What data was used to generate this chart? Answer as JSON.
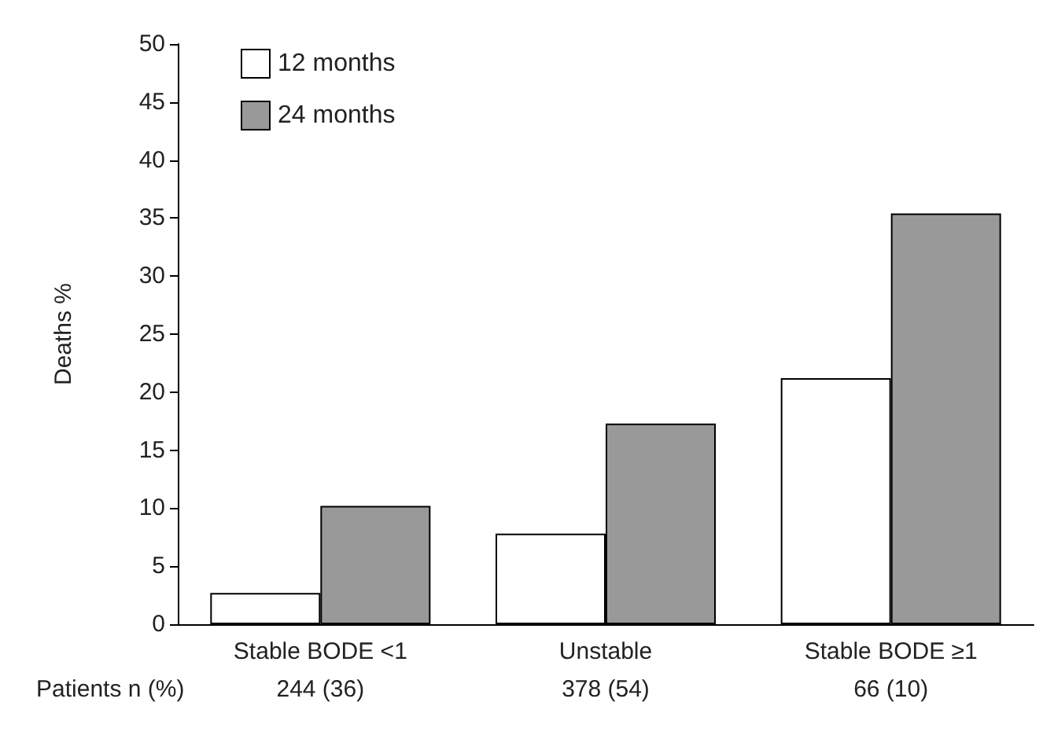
{
  "chart_data": {
    "type": "bar",
    "ylabel": "Deaths %",
    "categories": [
      "Stable BODE <1",
      "Unstable",
      "Stable BODE ≥1"
    ],
    "series": [
      {
        "name": "12 months",
        "color": "#ffffff",
        "values": [
          2.7,
          7.8,
          21.2
        ]
      },
      {
        "name": "24 months",
        "color": "#999999",
        "values": [
          10.2,
          17.3,
          35.4
        ]
      }
    ],
    "ylim": [
      0,
      50
    ],
    "yticks": [
      0,
      5,
      10,
      15,
      20,
      25,
      30,
      35,
      40,
      45,
      50
    ],
    "grid": false,
    "legend": "top left",
    "annotations": [
      "Patients n (%)",
      "244 (36)",
      "378 (54)",
      "66 (10)"
    ]
  }
}
